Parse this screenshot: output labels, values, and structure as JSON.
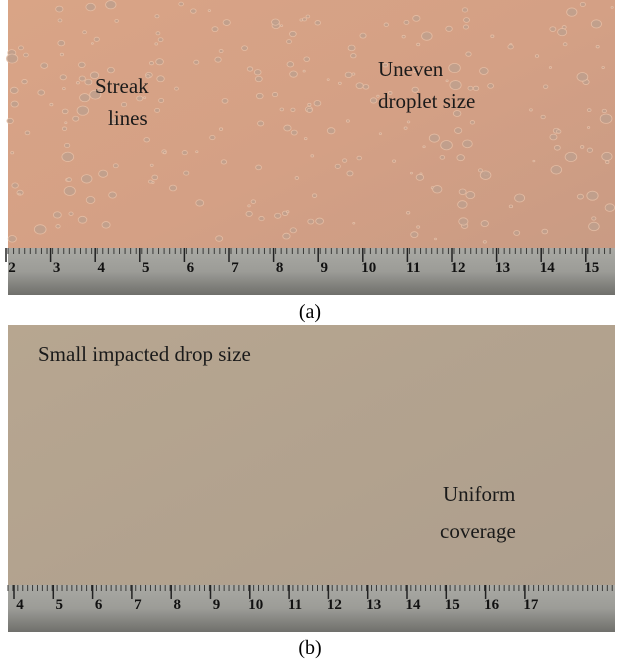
{
  "panels": [
    {
      "annotations": [
        {
          "lines": [
            "Streak",
            "lines"
          ]
        },
        {
          "lines": [
            "Uneven",
            "droplet size"
          ]
        }
      ],
      "ruler_numbers": [
        "2",
        "3",
        "4",
        "5",
        "6",
        "7",
        "8",
        "9",
        "10",
        "11",
        "12",
        "13",
        "14",
        "15"
      ],
      "caption": "(a)"
    },
    {
      "annotations": [
        {
          "lines": [
            "Small impacted drop size"
          ]
        },
        {
          "lines": [
            "Uniform",
            "coverage"
          ]
        }
      ],
      "ruler_numbers": [
        "4",
        "5",
        "6",
        "7",
        "8",
        "9",
        "10",
        "11",
        "12",
        "13",
        "14",
        "15",
        "16",
        "17"
      ],
      "caption": "(b)"
    }
  ]
}
